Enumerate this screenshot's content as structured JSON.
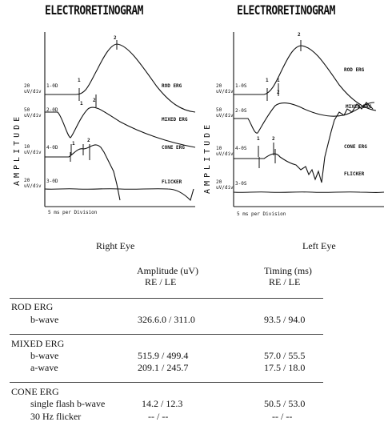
{
  "panels": [
    {
      "id": "right",
      "title": "ELECTRORETINOGRAM",
      "axis_label": "AMPLITUDE",
      "traces": [
        {
          "code": "1-0D",
          "scale": [
            "20",
            "uV/div"
          ],
          "label": "ROD ERG",
          "markers": [
            "1",
            "2"
          ]
        },
        {
          "code": "2-0D",
          "scale": [
            "50",
            "uV/div"
          ],
          "label": "MIXED ERG",
          "markers": [
            "1",
            "2"
          ]
        },
        {
          "code": "4-0D",
          "scale": [
            "10",
            "uV/div"
          ],
          "label": "CONE ERG",
          "markers": [
            "1",
            "2"
          ]
        },
        {
          "code": "3-0D",
          "scale": [
            "20",
            "uV/div"
          ],
          "label": "FLICKER",
          "markers": []
        }
      ],
      "time_scale": "5 ms per Division"
    },
    {
      "id": "left",
      "title": "ELECTRORETINOGRAM",
      "axis_label": "AMPLITUDE",
      "traces": [
        {
          "code": "1-0S",
          "scale": [
            "20",
            "uV/div"
          ],
          "label": "ROD ERG",
          "markers": [
            "1",
            "2"
          ]
        },
        {
          "code": "2-0S",
          "scale": [
            "50",
            "uV/div"
          ],
          "label": "MIXED ERG",
          "markers": [
            "1",
            "2"
          ]
        },
        {
          "code": "4-0S",
          "scale": [
            "10",
            "uV/div"
          ],
          "label": "CONE ERG",
          "markers": [
            "1",
            "2"
          ]
        },
        {
          "code": "3-0S",
          "scale": [
            "20",
            "uV/div"
          ],
          "label": "FLICKER",
          "markers": []
        }
      ],
      "time_scale": "5 ms per Division"
    }
  ],
  "eye_labels": {
    "right": "Right Eye",
    "left": "Left Eye"
  },
  "table": {
    "headers": {
      "amplitude": "Amplitude (uV)",
      "amplitude_sub": "RE / LE",
      "timing": "Timing (ms)",
      "timing_sub": "RE / LE"
    },
    "sections": [
      {
        "name": "ROD ERG",
        "rows": [
          {
            "label": "b-wave",
            "amplitude": "326.6.0 / 311.0",
            "timing": "93.5 /  94.0"
          }
        ]
      },
      {
        "name": "MIXED ERG",
        "rows": [
          {
            "label": "b-wave",
            "amplitude": "515.9 / 499.4",
            "timing": "57.0 / 55.5"
          },
          {
            "label": "a-wave",
            "amplitude": "209.1 / 245.7",
            "timing": "17.5 /  18.0"
          }
        ]
      },
      {
        "name": "CONE ERG",
        "rows": [
          {
            "label": "single flash b-wave",
            "amplitude": "14.2 /  12.3",
            "timing": "50.5 /  53.0"
          },
          {
            "label": "30 Hz flicker",
            "amplitude": "-- /  --",
            "timing": "-- /  --"
          }
        ]
      }
    ]
  }
}
